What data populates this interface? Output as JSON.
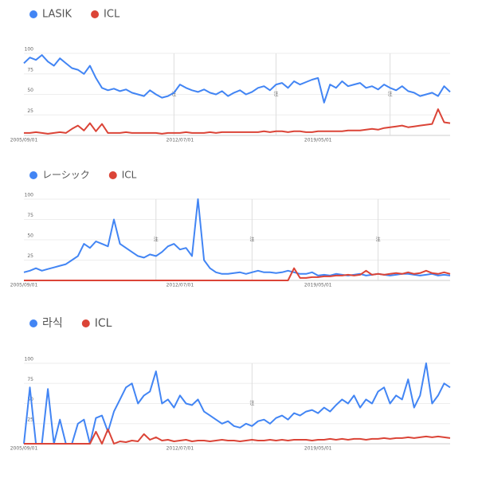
{
  "chart_data": [
    {
      "type": "line",
      "categories": [
        "2005/09/01",
        null,
        null,
        null,
        null,
        null,
        null,
        null,
        null,
        null,
        null,
        null,
        null,
        null,
        null,
        null,
        null,
        null,
        null,
        null,
        null,
        null,
        null,
        null,
        null,
        null,
        "2012/07/01",
        null,
        null,
        null,
        null,
        null,
        null,
        null,
        null,
        null,
        null,
        null,
        null,
        null,
        null,
        null,
        null,
        null,
        null,
        null,
        null,
        null,
        null,
        "2019/05/01",
        null,
        null,
        null,
        null,
        null,
        null,
        null,
        null,
        null,
        null,
        null,
        null,
        null,
        null,
        null,
        null,
        null,
        null,
        null,
        null,
        null,
        null
      ],
      "series": [
        {
          "name": "LASIK",
          "color": "#4285f4",
          "values": [
            88,
            95,
            92,
            98,
            90,
            85,
            94,
            88,
            82,
            80,
            75,
            85,
            70,
            58,
            55,
            57,
            54,
            56,
            52,
            50,
            48,
            55,
            50,
            46,
            48,
            52,
            62,
            58,
            55,
            53,
            56,
            52,
            50,
            54,
            48,
            52,
            55,
            50,
            53,
            58,
            60,
            55,
            62,
            64,
            58,
            66,
            62,
            65,
            68,
            70,
            40,
            62,
            58,
            66,
            60,
            62,
            64,
            58,
            60,
            56,
            62,
            58,
            55,
            60,
            54,
            52,
            48,
            50,
            52,
            48,
            60,
            53
          ]
        },
        {
          "name": "ICL",
          "color": "#db4437",
          "values": [
            3,
            3,
            4,
            3,
            2,
            3,
            4,
            3,
            8,
            12,
            6,
            15,
            5,
            14,
            3,
            3,
            3,
            4,
            3,
            3,
            3,
            3,
            3,
            2,
            3,
            3,
            3,
            4,
            3,
            3,
            3,
            4,
            3,
            4,
            4,
            4,
            4,
            4,
            4,
            4,
            5,
            4,
            5,
            5,
            4,
            5,
            5,
            4,
            4,
            5,
            5,
            5,
            5,
            5,
            6,
            6,
            6,
            7,
            8,
            7,
            9,
            10,
            11,
            12,
            10,
            11,
            12,
            13,
            14,
            32,
            16,
            15
          ]
        }
      ],
      "ylim": [
        0,
        100
      ],
      "yticks": [
        25,
        50,
        75,
        100
      ],
      "grid": true,
      "notes": [
        {
          "index": 25,
          "label": "注"
        },
        {
          "index": 42,
          "label": "注"
        },
        {
          "index": 61,
          "label": "注"
        }
      ]
    },
    {
      "type": "line",
      "categories": [
        "2005/09/01",
        null,
        null,
        null,
        null,
        null,
        null,
        null,
        null,
        null,
        null,
        null,
        null,
        null,
        null,
        null,
        null,
        null,
        null,
        null,
        null,
        null,
        null,
        null,
        null,
        null,
        "2012/07/01",
        null,
        null,
        null,
        null,
        null,
        null,
        null,
        null,
        null,
        null,
        null,
        null,
        null,
        null,
        null,
        null,
        null,
        null,
        null,
        null,
        null,
        null,
        "2019/05/01",
        null,
        null,
        null,
        null,
        null,
        null,
        null,
        null,
        null,
        null,
        null,
        null,
        null,
        null,
        null,
        null,
        null,
        null,
        null,
        null,
        null,
        null
      ],
      "series": [
        {
          "name": "レーシック",
          "color": "#4285f4",
          "values": [
            10,
            12,
            15,
            12,
            14,
            16,
            18,
            20,
            25,
            30,
            45,
            40,
            48,
            45,
            42,
            75,
            45,
            40,
            35,
            30,
            28,
            32,
            30,
            35,
            42,
            45,
            38,
            40,
            30,
            100,
            25,
            15,
            10,
            8,
            8,
            9,
            10,
            8,
            10,
            12,
            10,
            10,
            9,
            10,
            12,
            10,
            8,
            8,
            10,
            6,
            7,
            6,
            8,
            7,
            6,
            7,
            8,
            6,
            7,
            8,
            7,
            6,
            7,
            8,
            8,
            7,
            6,
            7,
            8,
            6,
            7,
            6
          ]
        },
        {
          "name": "ICL",
          "color": "#db4437",
          "values": [
            0,
            0,
            0,
            0,
            0,
            0,
            0,
            0,
            0,
            0,
            0,
            0,
            0,
            0,
            0,
            0,
            0,
            0,
            0,
            0,
            0,
            0,
            0,
            0,
            0,
            0,
            0,
            0,
            0,
            0,
            0,
            0,
            0,
            0,
            0,
            0,
            0,
            0,
            0,
            0,
            0,
            0,
            0,
            0,
            0,
            15,
            3,
            3,
            4,
            4,
            5,
            5,
            6,
            6,
            7,
            6,
            7,
            12,
            7,
            8,
            7,
            8,
            9,
            8,
            10,
            8,
            9,
            12,
            9,
            8,
            10,
            8
          ]
        }
      ],
      "ylim": [
        0,
        100
      ],
      "yticks": [
        25,
        50,
        75,
        100
      ],
      "grid": true,
      "notes": [
        {
          "index": 22,
          "label": "注"
        },
        {
          "index": 38,
          "label": "注"
        },
        {
          "index": 59,
          "label": "注"
        }
      ]
    },
    {
      "type": "line",
      "categories": [
        "2005/09/01",
        null,
        null,
        null,
        null,
        null,
        null,
        null,
        null,
        null,
        null,
        null,
        null,
        null,
        null,
        null,
        null,
        null,
        null,
        null,
        null,
        null,
        null,
        null,
        null,
        null,
        "2012/07/01",
        null,
        null,
        null,
        null,
        null,
        null,
        null,
        null,
        null,
        null,
        null,
        null,
        null,
        null,
        null,
        null,
        null,
        null,
        null,
        null,
        null,
        null,
        "2019/05/01",
        null,
        null,
        null,
        null,
        null,
        null,
        null,
        null,
        null,
        null,
        null,
        null,
        null,
        null,
        null,
        null,
        null,
        null,
        null,
        null,
        null,
        null
      ],
      "series": [
        {
          "name": "라식",
          "color": "#4285f4",
          "values": [
            0,
            70,
            0,
            0,
            68,
            0,
            30,
            0,
            0,
            25,
            30,
            0,
            32,
            35,
            15,
            40,
            55,
            70,
            75,
            50,
            60,
            65,
            90,
            50,
            55,
            45,
            60,
            50,
            48,
            55,
            40,
            35,
            30,
            25,
            28,
            22,
            20,
            25,
            22,
            28,
            30,
            25,
            32,
            35,
            30,
            38,
            35,
            40,
            42,
            38,
            45,
            40,
            48,
            55,
            50,
            60,
            45,
            55,
            50,
            65,
            70,
            50,
            60,
            55,
            80,
            45,
            60,
            100,
            50,
            60,
            75,
            70
          ]
        },
        {
          "name": "ICL",
          "color": "#db4437",
          "values": [
            0,
            0,
            0,
            0,
            0,
            0,
            0,
            0,
            0,
            0,
            0,
            0,
            15,
            0,
            18,
            0,
            3,
            2,
            4,
            3,
            12,
            5,
            8,
            4,
            5,
            3,
            4,
            5,
            3,
            4,
            4,
            3,
            4,
            5,
            4,
            4,
            3,
            4,
            5,
            4,
            4,
            5,
            4,
            5,
            4,
            5,
            5,
            5,
            4,
            5,
            5,
            6,
            5,
            6,
            5,
            6,
            6,
            5,
            6,
            6,
            7,
            6,
            7,
            7,
            8,
            7,
            8,
            9,
            8,
            9,
            8,
            7
          ]
        }
      ],
      "ylim": [
        0,
        100
      ],
      "yticks": [
        25,
        50,
        75,
        100
      ],
      "grid": true,
      "notes": [
        {
          "index": 38,
          "label": "注"
        }
      ]
    }
  ]
}
